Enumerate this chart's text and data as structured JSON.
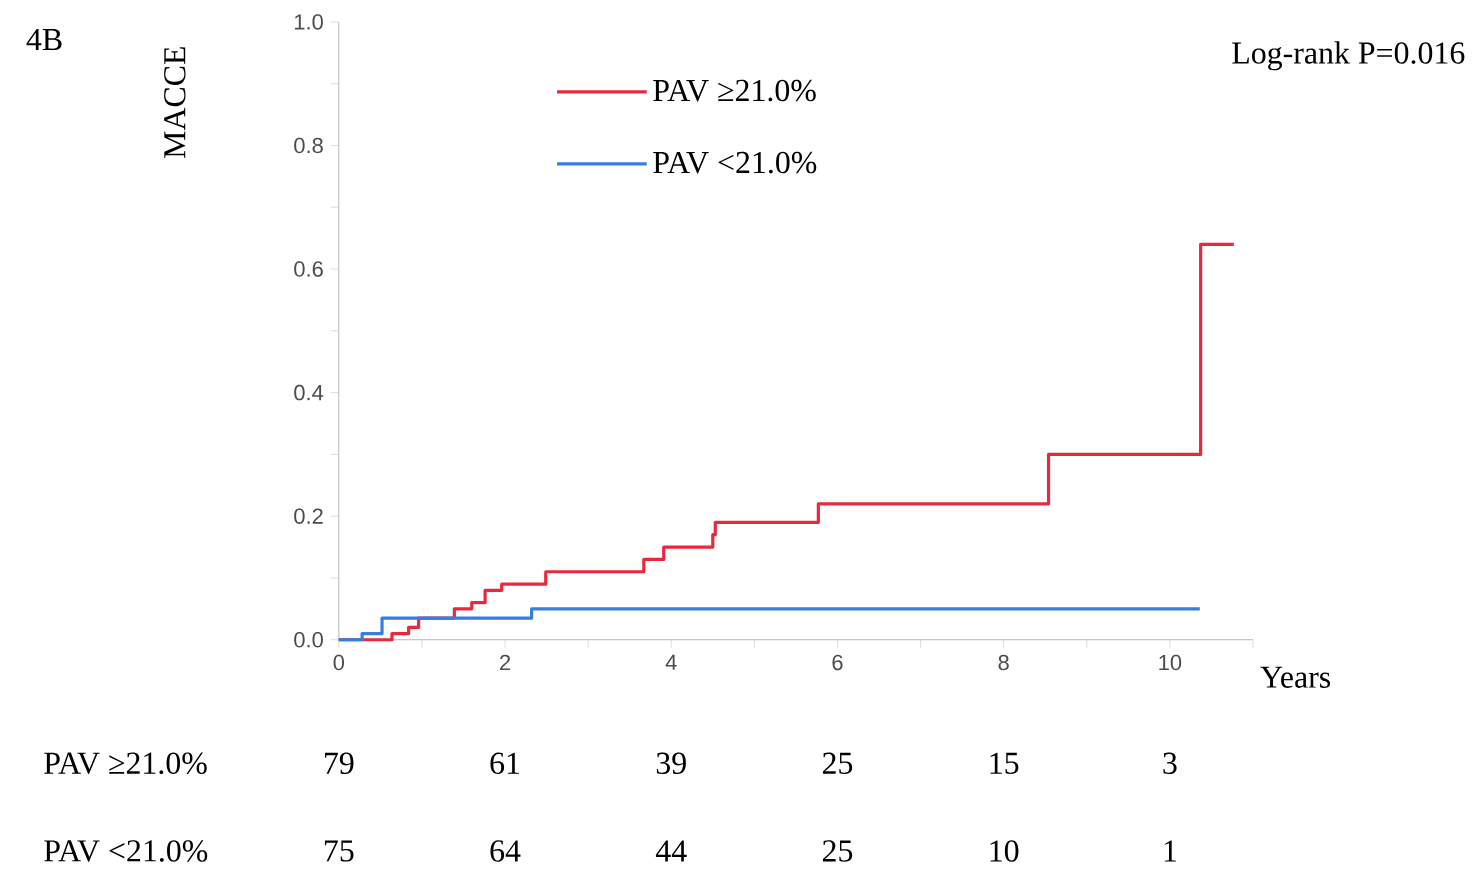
{
  "chart_data": {
    "type": "step",
    "xlabel": "Years",
    "ylabel": "MACCE",
    "xlim": [
      0,
      11
    ],
    "ylim": [
      0,
      1
    ],
    "xticks": [
      0,
      {
        "value": 1,
        "label": null
      },
      2,
      {
        "value": 3,
        "label": null
      },
      4,
      {
        "value": 5,
        "label": null
      },
      6,
      {
        "value": 7,
        "label": null
      },
      8,
      {
        "value": 9,
        "label": null
      },
      10,
      {
        "value": 11,
        "label": null
      }
    ],
    "yticks": [
      {
        "value": 0,
        "label": "0.0"
      },
      {
        "value": 0.1,
        "label": null
      },
      {
        "value": 0.2,
        "label": "0.2"
      },
      {
        "value": 0.3,
        "label": null
      },
      {
        "value": 0.4,
        "label": "0.4"
      },
      {
        "value": 0.5,
        "label": null
      },
      {
        "value": 0.6,
        "label": "0.6"
      },
      {
        "value": 0.7,
        "label": null
      },
      {
        "value": 0.8,
        "label": "0.8"
      },
      {
        "value": 0.9,
        "label": null
      },
      {
        "value": 1,
        "label": "1.0"
      }
    ],
    "series": [
      {
        "name": "PAV ≥21.0%",
        "color": "#e8283c",
        "x": [
          0,
          0.64,
          0.84,
          0.96,
          1.39,
          1.6,
          1.76,
          1.96,
          2.49,
          3.67,
          3.91,
          4.5,
          4.53,
          5.77,
          8.54,
          10.37,
          10.77
        ],
        "values": [
          0,
          0.01,
          0.02,
          0.035,
          0.05,
          0.06,
          0.08,
          0.09,
          0.11,
          0.13,
          0.15,
          0.17,
          0.19,
          0.22,
          0.3,
          0.64,
          0.64
        ]
      },
      {
        "name": "PAV <21.0%",
        "color": "#3a7de0",
        "x": [
          0,
          0.28,
          0.52,
          2.32,
          10.36
        ],
        "values": [
          0,
          0.01,
          0.035,
          0.05,
          0.05
        ]
      }
    ],
    "legend": "top",
    "grid": false,
    "marker": "none",
    "line_style": "solid",
    "annotations": [
      "4B",
      "Log-rank P=0.016",
      "PAV ≥21.0%",
      "79",
      "61",
      "39",
      "25",
      "15",
      "3",
      "PAV <21.0%",
      "75",
      "64",
      "44",
      "25",
      "10",
      "1"
    ]
  }
}
